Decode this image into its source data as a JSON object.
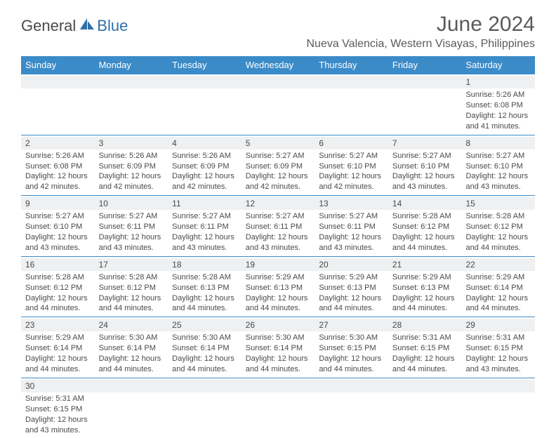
{
  "logo": {
    "text1": "General",
    "text2": "Blue"
  },
  "title": "June 2024",
  "location": "Nueva Valencia, Western Visayas, Philippines",
  "colors": {
    "header_bg": "#3b8bc8",
    "header_text": "#ffffff",
    "row_divider": "#3b8bc8",
    "daynum_bg": "#eef0f1",
    "body_text": "#4a4a4a",
    "logo_blue": "#2f6fa8",
    "page_bg": "#ffffff"
  },
  "typography": {
    "title_fontsize": 30,
    "location_fontsize": 16,
    "day_header_fontsize": 13,
    "cell_fontsize": 11,
    "logo_fontsize": 22
  },
  "day_names": [
    "Sunday",
    "Monday",
    "Tuesday",
    "Wednesday",
    "Thursday",
    "Friday",
    "Saturday"
  ],
  "weeks": [
    [
      null,
      null,
      null,
      null,
      null,
      null,
      {
        "n": "1",
        "sunrise": "5:26 AM",
        "sunset": "6:08 PM",
        "daylight": "12 hours and 41 minutes."
      }
    ],
    [
      {
        "n": "2",
        "sunrise": "5:26 AM",
        "sunset": "6:08 PM",
        "daylight": "12 hours and 42 minutes."
      },
      {
        "n": "3",
        "sunrise": "5:26 AM",
        "sunset": "6:09 PM",
        "daylight": "12 hours and 42 minutes."
      },
      {
        "n": "4",
        "sunrise": "5:26 AM",
        "sunset": "6:09 PM",
        "daylight": "12 hours and 42 minutes."
      },
      {
        "n": "5",
        "sunrise": "5:27 AM",
        "sunset": "6:09 PM",
        "daylight": "12 hours and 42 minutes."
      },
      {
        "n": "6",
        "sunrise": "5:27 AM",
        "sunset": "6:10 PM",
        "daylight": "12 hours and 42 minutes."
      },
      {
        "n": "7",
        "sunrise": "5:27 AM",
        "sunset": "6:10 PM",
        "daylight": "12 hours and 43 minutes."
      },
      {
        "n": "8",
        "sunrise": "5:27 AM",
        "sunset": "6:10 PM",
        "daylight": "12 hours and 43 minutes."
      }
    ],
    [
      {
        "n": "9",
        "sunrise": "5:27 AM",
        "sunset": "6:10 PM",
        "daylight": "12 hours and 43 minutes."
      },
      {
        "n": "10",
        "sunrise": "5:27 AM",
        "sunset": "6:11 PM",
        "daylight": "12 hours and 43 minutes."
      },
      {
        "n": "11",
        "sunrise": "5:27 AM",
        "sunset": "6:11 PM",
        "daylight": "12 hours and 43 minutes."
      },
      {
        "n": "12",
        "sunrise": "5:27 AM",
        "sunset": "6:11 PM",
        "daylight": "12 hours and 43 minutes."
      },
      {
        "n": "13",
        "sunrise": "5:27 AM",
        "sunset": "6:11 PM",
        "daylight": "12 hours and 43 minutes."
      },
      {
        "n": "14",
        "sunrise": "5:28 AM",
        "sunset": "6:12 PM",
        "daylight": "12 hours and 44 minutes."
      },
      {
        "n": "15",
        "sunrise": "5:28 AM",
        "sunset": "6:12 PM",
        "daylight": "12 hours and 44 minutes."
      }
    ],
    [
      {
        "n": "16",
        "sunrise": "5:28 AM",
        "sunset": "6:12 PM",
        "daylight": "12 hours and 44 minutes."
      },
      {
        "n": "17",
        "sunrise": "5:28 AM",
        "sunset": "6:12 PM",
        "daylight": "12 hours and 44 minutes."
      },
      {
        "n": "18",
        "sunrise": "5:28 AM",
        "sunset": "6:13 PM",
        "daylight": "12 hours and 44 minutes."
      },
      {
        "n": "19",
        "sunrise": "5:29 AM",
        "sunset": "6:13 PM",
        "daylight": "12 hours and 44 minutes."
      },
      {
        "n": "20",
        "sunrise": "5:29 AM",
        "sunset": "6:13 PM",
        "daylight": "12 hours and 44 minutes."
      },
      {
        "n": "21",
        "sunrise": "5:29 AM",
        "sunset": "6:13 PM",
        "daylight": "12 hours and 44 minutes."
      },
      {
        "n": "22",
        "sunrise": "5:29 AM",
        "sunset": "6:14 PM",
        "daylight": "12 hours and 44 minutes."
      }
    ],
    [
      {
        "n": "23",
        "sunrise": "5:29 AM",
        "sunset": "6:14 PM",
        "daylight": "12 hours and 44 minutes."
      },
      {
        "n": "24",
        "sunrise": "5:30 AM",
        "sunset": "6:14 PM",
        "daylight": "12 hours and 44 minutes."
      },
      {
        "n": "25",
        "sunrise": "5:30 AM",
        "sunset": "6:14 PM",
        "daylight": "12 hours and 44 minutes."
      },
      {
        "n": "26",
        "sunrise": "5:30 AM",
        "sunset": "6:14 PM",
        "daylight": "12 hours and 44 minutes."
      },
      {
        "n": "27",
        "sunrise": "5:30 AM",
        "sunset": "6:15 PM",
        "daylight": "12 hours and 44 minutes."
      },
      {
        "n": "28",
        "sunrise": "5:31 AM",
        "sunset": "6:15 PM",
        "daylight": "12 hours and 44 minutes."
      },
      {
        "n": "29",
        "sunrise": "5:31 AM",
        "sunset": "6:15 PM",
        "daylight": "12 hours and 43 minutes."
      }
    ],
    [
      {
        "n": "30",
        "sunrise": "5:31 AM",
        "sunset": "6:15 PM",
        "daylight": "12 hours and 43 minutes."
      },
      null,
      null,
      null,
      null,
      null,
      null
    ]
  ],
  "labels": {
    "sunrise": "Sunrise: ",
    "sunset": "Sunset: ",
    "daylight": "Daylight: "
  }
}
